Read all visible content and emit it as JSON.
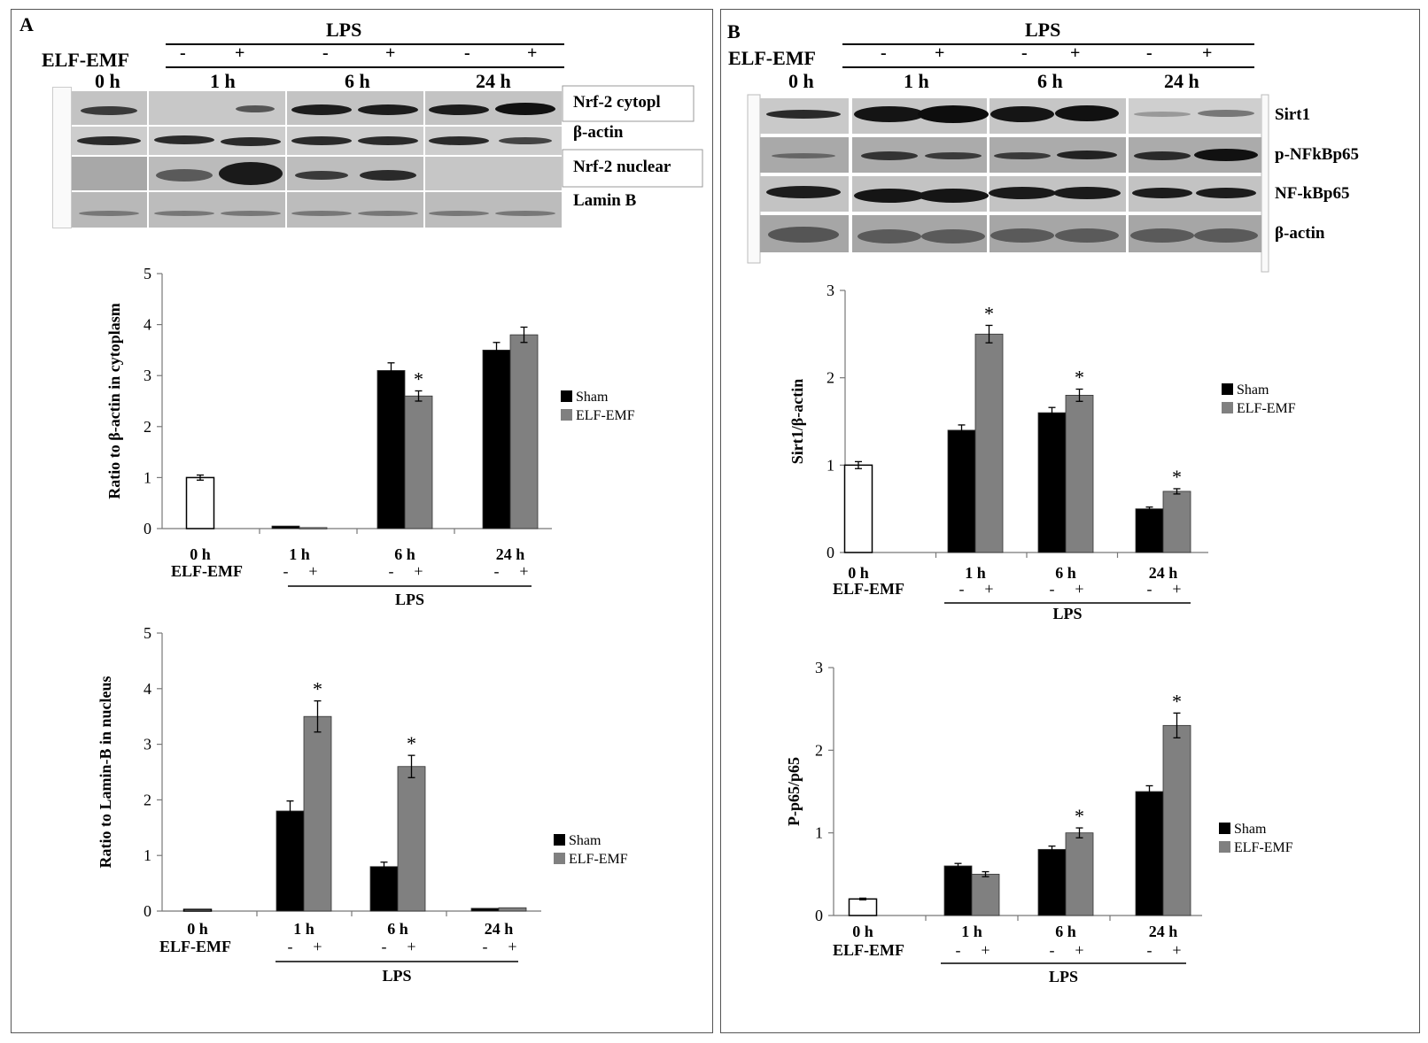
{
  "panel_a": {
    "label": "A",
    "blot": {
      "treatment_label": "LPS",
      "field_label": "ELF-EMF",
      "signs": [
        "-",
        "+",
        "-",
        "+",
        "-",
        "+"
      ],
      "timepoints": [
        "0 h",
        "1 h",
        "6 h",
        "24 h"
      ],
      "bands": [
        "Nrf-2 cytopl",
        "β-actin",
        "Nrf-2 nuclear",
        "Lamin B"
      ]
    }
  },
  "panel_b": {
    "label": "B",
    "blot": {
      "treatment_label": "LPS",
      "field_label": "ELF-EMF",
      "signs": [
        "-",
        "+",
        "-",
        "+",
        "-",
        "+"
      ],
      "timepoints": [
        "0 h",
        "1 h",
        "6 h",
        "24 h"
      ],
      "bands": [
        "Sirt1",
        "p-NFkBp65",
        "NF-kBp65",
        "β-actin"
      ]
    }
  },
  "colors": {
    "sham": "#000000",
    "elf_emf": "#808080",
    "control": "#ffffff"
  },
  "chart_data": [
    {
      "id": "a1",
      "type": "bar",
      "ylabel": "Ratio to β-actin in cytoplasm",
      "ylim": [
        0,
        5
      ],
      "yticks": [
        0,
        1,
        2,
        3,
        4,
        5
      ],
      "categories": [
        "0 h",
        "1 h",
        "6 h",
        "24 h"
      ],
      "control": {
        "category": "0 h",
        "value": 1.0,
        "error": 0.05
      },
      "series": [
        {
          "name": "Sham",
          "values": [
            null,
            0.05,
            3.1,
            3.5
          ],
          "errors": [
            null,
            0,
            0.15,
            0.15
          ]
        },
        {
          "name": "ELF-EMF",
          "values": [
            null,
            0.02,
            2.6,
            3.8
          ],
          "errors": [
            null,
            0,
            0.1,
            0.15
          ]
        }
      ],
      "significance": [
        {
          "series": "ELF-EMF",
          "category": "6 h",
          "mark": "*"
        }
      ],
      "xlabel_row": "ELF-EMF",
      "signs": [
        "-",
        "+"
      ],
      "bracket_label": "LPS",
      "legend": "right"
    },
    {
      "id": "a2",
      "type": "bar",
      "ylabel": "Ratio to Lamin-B in nucleus",
      "ylim": [
        0,
        5
      ],
      "yticks": [
        0,
        1,
        2,
        3,
        4,
        5
      ],
      "categories": [
        "0 h",
        "1 h",
        "6 h",
        "24 h"
      ],
      "control": {
        "category": "0 h",
        "value": 0.03,
        "error": 0
      },
      "series": [
        {
          "name": "Sham",
          "values": [
            null,
            1.8,
            0.8,
            0.05
          ],
          "errors": [
            null,
            0.18,
            0.08,
            0
          ]
        },
        {
          "name": "ELF-EMF",
          "values": [
            null,
            3.5,
            2.6,
            0.06
          ],
          "errors": [
            null,
            0.28,
            0.2,
            0
          ]
        }
      ],
      "significance": [
        {
          "series": "ELF-EMF",
          "category": "1 h",
          "mark": "*"
        },
        {
          "series": "ELF-EMF",
          "category": "6 h",
          "mark": "*"
        }
      ],
      "xlabel_row": "ELF-EMF",
      "signs": [
        "-",
        "+"
      ],
      "bracket_label": "LPS",
      "legend": "right"
    },
    {
      "id": "b1",
      "type": "bar",
      "ylabel": "Sirt1/β-actin",
      "ylim": [
        0,
        3
      ],
      "yticks": [
        0,
        1,
        2,
        3
      ],
      "categories": [
        "0 h",
        "1 h",
        "6 h",
        "24 h"
      ],
      "control": {
        "category": "0 h",
        "value": 1.0,
        "error": 0.04
      },
      "series": [
        {
          "name": "Sham",
          "values": [
            null,
            1.4,
            1.6,
            0.5
          ],
          "errors": [
            null,
            0.06,
            0.06,
            0.02
          ]
        },
        {
          "name": "ELF-EMF",
          "values": [
            null,
            2.5,
            1.8,
            0.7
          ],
          "errors": [
            null,
            0.1,
            0.07,
            0.03
          ]
        }
      ],
      "significance": [
        {
          "series": "ELF-EMF",
          "category": "1 h",
          "mark": "*"
        },
        {
          "series": "ELF-EMF",
          "category": "6 h",
          "mark": "*"
        },
        {
          "series": "ELF-EMF",
          "category": "24 h",
          "mark": "*"
        }
      ],
      "xlabel_row": "ELF-EMF",
      "signs": [
        "-",
        "+"
      ],
      "bracket_label": "LPS",
      "legend": "right"
    },
    {
      "id": "b2",
      "type": "bar",
      "ylabel": "P-p65/p65",
      "ylim": [
        0,
        3
      ],
      "yticks": [
        0,
        1,
        2,
        3
      ],
      "categories": [
        "0 h",
        "1 h",
        "6 h",
        "24 h"
      ],
      "control": {
        "category": "0 h",
        "value": 0.2,
        "error": 0.01
      },
      "series": [
        {
          "name": "Sham",
          "values": [
            null,
            0.6,
            0.8,
            1.5
          ],
          "errors": [
            null,
            0.03,
            0.04,
            0.07
          ]
        },
        {
          "name": "ELF-EMF",
          "values": [
            null,
            0.5,
            1.0,
            2.3
          ],
          "errors": [
            null,
            0.03,
            0.06,
            0.15
          ]
        }
      ],
      "significance": [
        {
          "series": "ELF-EMF",
          "category": "6 h",
          "mark": "*"
        },
        {
          "series": "ELF-EMF",
          "category": "24 h",
          "mark": "*"
        }
      ],
      "xlabel_row": "ELF-EMF",
      "signs": [
        "-",
        "+"
      ],
      "bracket_label": "LPS",
      "legend": "right"
    }
  ]
}
